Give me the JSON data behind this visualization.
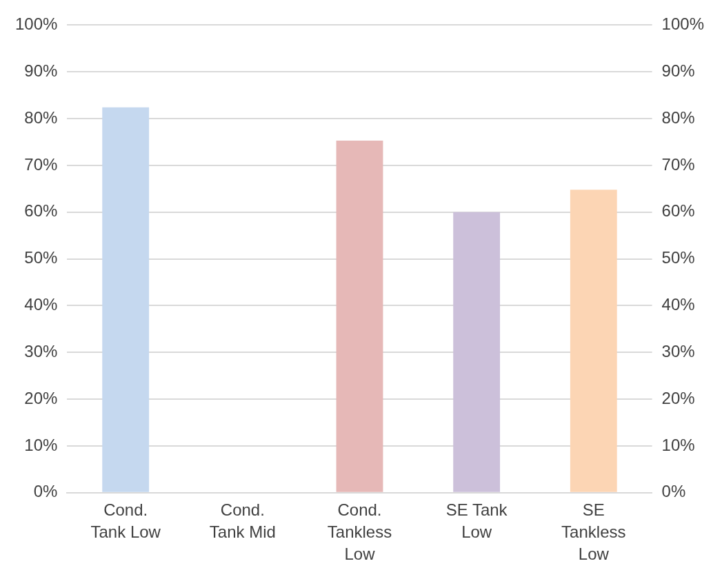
{
  "chart_data": {
    "type": "bar",
    "categories": [
      "Cond. Tank Low",
      "Cond. Tank Mid",
      "Cond. Tankless Low",
      "SE Tank Low",
      "SE Tankless Low"
    ],
    "values": [
      82.4,
      null,
      75.3,
      60,
      64.8
    ],
    "colors": [
      "#c5d8ef",
      "#c5d8ef",
      "#e6b8b7",
      "#ccc0da",
      "#fcd5b4"
    ],
    "ylim": [
      0,
      100
    ],
    "yticks": [
      {
        "value": 0,
        "label": "0%"
      },
      {
        "value": 10,
        "label": "10%"
      },
      {
        "value": 20,
        "label": "20%"
      },
      {
        "value": 30,
        "label": "30%"
      },
      {
        "value": 40,
        "label": "40%"
      },
      {
        "value": 50,
        "label": "50%"
      },
      {
        "value": 60,
        "label": "60%"
      },
      {
        "value": 70,
        "label": "70%"
      },
      {
        "value": 80,
        "label": "80%"
      },
      {
        "value": 90,
        "label": "90%"
      },
      {
        "value": 100,
        "label": "100%"
      }
    ],
    "y2lim": [
      0,
      100
    ],
    "y2ticks": [
      {
        "value": 0,
        "label": "0%"
      },
      {
        "value": 10,
        "label": "10%"
      },
      {
        "value": 20,
        "label": "20%"
      },
      {
        "value": 30,
        "label": "30%"
      },
      {
        "value": 40,
        "label": "40%"
      },
      {
        "value": 50,
        "label": "50%"
      },
      {
        "value": 60,
        "label": "60%"
      },
      {
        "value": 70,
        "label": "70%"
      },
      {
        "value": 80,
        "label": "80%"
      },
      {
        "value": 90,
        "label": "90%"
      },
      {
        "value": 100,
        "label": "100%"
      }
    ],
    "grid": "y"
  }
}
